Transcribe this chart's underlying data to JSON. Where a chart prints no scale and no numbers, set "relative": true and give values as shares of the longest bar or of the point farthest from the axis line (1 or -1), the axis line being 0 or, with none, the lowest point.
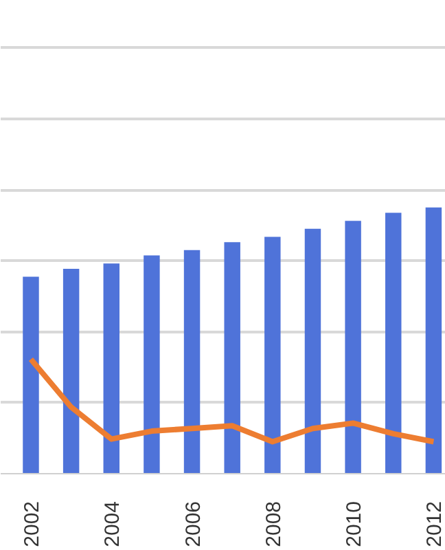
{
  "chart_data": {
    "type": "bar",
    "relative": true,
    "grid": "y",
    "categories": [
      "2002",
      null,
      "2004",
      null,
      "2006",
      null,
      "2008",
      null,
      "2010",
      null,
      "2012"
    ],
    "series": [
      {
        "color": "#4f73d9",
        "values": [
          0.74,
          0.77,
          0.79,
          0.82,
          0.84,
          0.87,
          0.89,
          0.92,
          0.95,
          0.98,
          1
        ]
      },
      {
        "type": "line",
        "color": "#ed7d31",
        "values": [
          0.43,
          0.25,
          0.13,
          0.16,
          0.17,
          0.18,
          0.12,
          0.17,
          0.19,
          0.15,
          0.12
        ]
      }
    ]
  }
}
